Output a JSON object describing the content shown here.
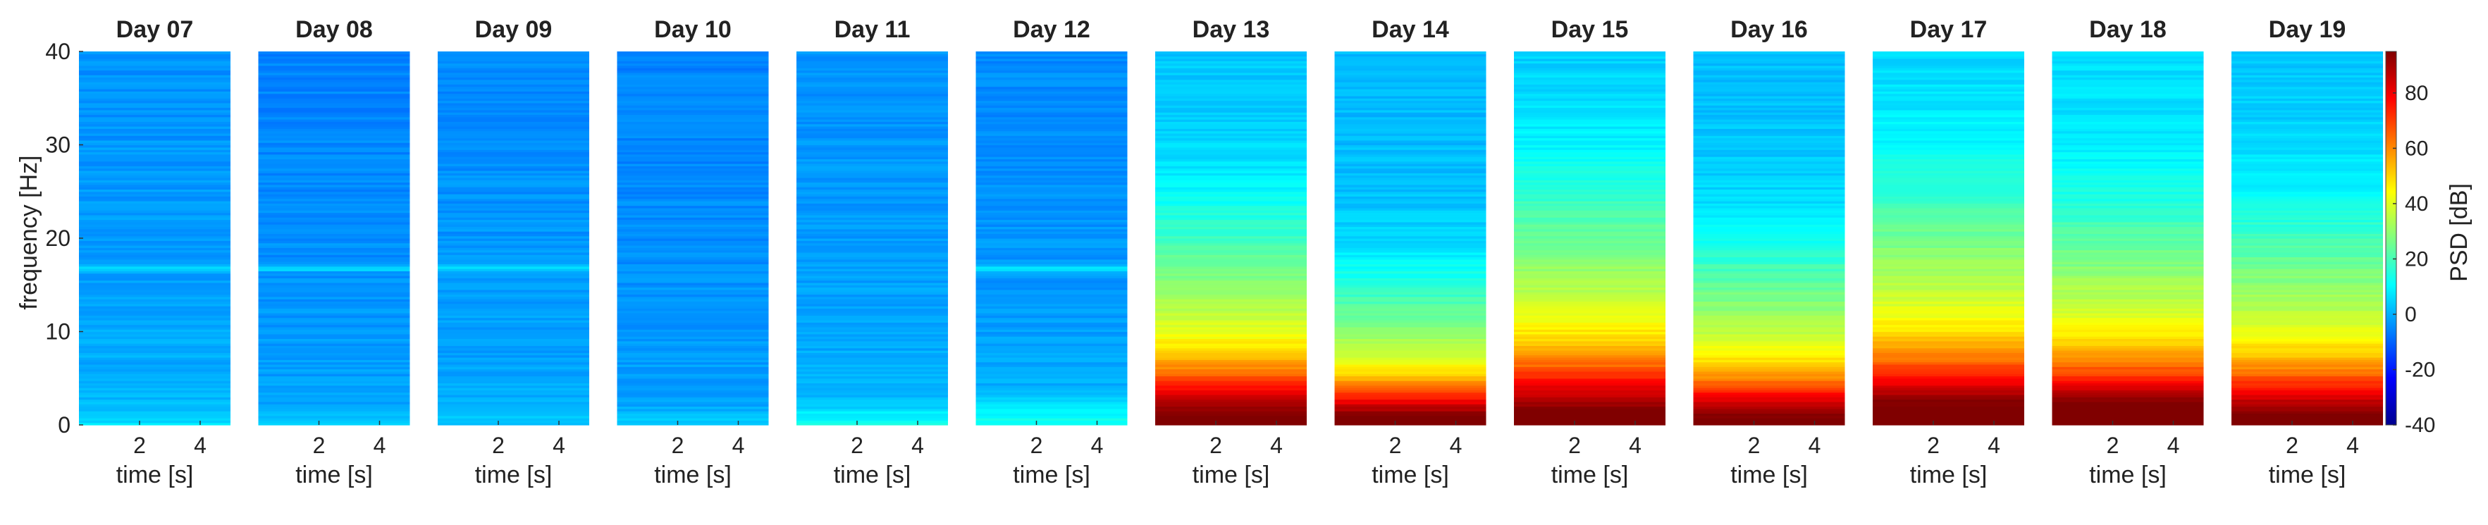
{
  "chart_data": {
    "type": "heatmap",
    "description_kind": "spectrogram small multiples",
    "panels": [
      {
        "title": "Day 07",
        "profile": {
          "base_dB": -2,
          "band_17Hz": true,
          "low_boost_dB": 6,
          "low_width_Hz": 1.5
        }
      },
      {
        "title": "Day 08",
        "profile": {
          "base_dB": -4,
          "band_17Hz": true,
          "low_boost_dB": 5,
          "low_width_Hz": 1.5
        }
      },
      {
        "title": "Day 09",
        "profile": {
          "base_dB": -3,
          "band_17Hz": true,
          "low_boost_dB": 4,
          "low_width_Hz": 1.5
        }
      },
      {
        "title": "Day 10",
        "profile": {
          "base_dB": -4,
          "band_17Hz": false,
          "low_boost_dB": 5,
          "low_width_Hz": 1.5
        }
      },
      {
        "title": "Day 11",
        "profile": {
          "base_dB": -2,
          "band_17Hz": false,
          "low_boost_dB": 12,
          "low_width_Hz": 2
        }
      },
      {
        "title": "Day 12",
        "profile": {
          "base_dB": -3,
          "band_17Hz": true,
          "low_boost_dB": 14,
          "low_width_Hz": 2.5
        }
      },
      {
        "title": "Day 13",
        "profile": {
          "base_dB": 5,
          "band_17Hz": false,
          "low_boost_dB": 85,
          "low_width_Hz": 7
        }
      },
      {
        "title": "Day 14",
        "profile": {
          "base_dB": 3,
          "band_17Hz": false,
          "low_boost_dB": 88,
          "low_width_Hz": 5
        }
      },
      {
        "title": "Day 15",
        "profile": {
          "base_dB": 6,
          "band_17Hz": false,
          "low_boost_dB": 85,
          "low_width_Hz": 8
        }
      },
      {
        "title": "Day 16",
        "profile": {
          "base_dB": 4,
          "band_17Hz": false,
          "low_boost_dB": 85,
          "low_width_Hz": 6
        }
      },
      {
        "title": "Day 17",
        "profile": {
          "base_dB": 7,
          "band_17Hz": false,
          "low_boost_dB": 88,
          "low_width_Hz": 8
        }
      },
      {
        "title": "Day 18",
        "profile": {
          "base_dB": 8,
          "band_17Hz": false,
          "low_boost_dB": 90,
          "low_width_Hz": 7
        }
      },
      {
        "title": "Day 19",
        "profile": {
          "base_dB": 5,
          "band_17Hz": false,
          "low_boost_dB": 85,
          "low_width_Hz": 7
        }
      }
    ],
    "xlabel": "time [s]",
    "ylabel": "frequency [Hz]",
    "xlim": [
      0,
      5
    ],
    "ylim": [
      0,
      40
    ],
    "xticks": [
      "2",
      "4"
    ],
    "xtick_values": [
      2,
      4
    ],
    "yticks": [
      "0",
      "10",
      "20",
      "30",
      "40"
    ],
    "ytick_values": [
      0,
      10,
      20,
      30,
      40
    ],
    "colorbar": {
      "label": "PSD [dB]",
      "range": [
        -40,
        95
      ],
      "ticks": [
        "-40",
        "-20",
        "0",
        "20",
        "40",
        "60",
        "80"
      ],
      "tick_values": [
        -40,
        -20,
        0,
        20,
        40,
        60,
        80
      ],
      "colormap": "jet"
    }
  }
}
